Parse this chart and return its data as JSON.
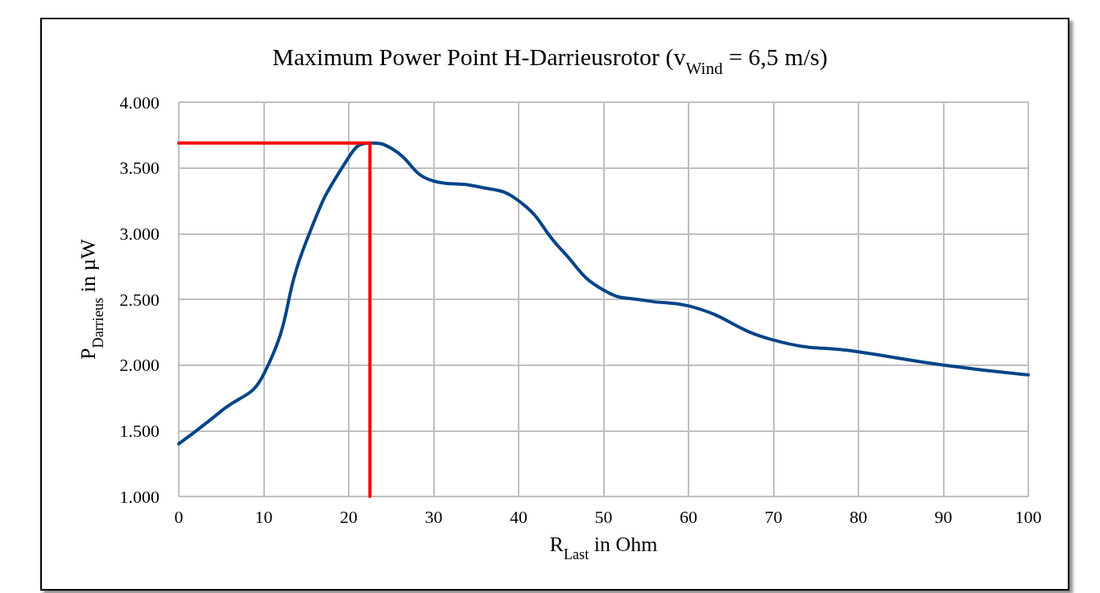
{
  "chart_data": {
    "type": "line",
    "title": "Maximum Power Point H-Darrieusrotor (v$_{Wind}$ = 6,5 m/s)",
    "xlabel": "R$_{Last}$ in Ohm",
    "ylabel": "P$_{Darrieus}$ in µW",
    "xlim": [
      0,
      100
    ],
    "xticks": [
      0,
      10,
      20,
      30,
      40,
      50,
      60,
      70,
      80,
      90,
      100
    ],
    "ylim": [
      1000,
      4000
    ],
    "yticks": [
      {
        "value": 1000,
        "label": "1.000"
      },
      {
        "value": 1500,
        "label": "1.500"
      },
      {
        "value": 2000,
        "label": "2.000"
      },
      {
        "value": 2500,
        "label": "2.500"
      },
      {
        "value": 3000,
        "label": "3.000"
      },
      {
        "value": 3500,
        "label": "3.500"
      },
      {
        "value": 4000,
        "label": "4.000"
      }
    ],
    "grid": true,
    "marker": "none",
    "line_style": "solid",
    "series": [
      {
        "color": "#004489",
        "x": [
          0,
          5,
          10,
          15,
          20,
          22.5,
          25,
          30,
          35,
          40,
          45,
          50,
          55,
          60,
          70,
          80,
          90,
          100
        ],
        "values": [
          1400,
          1650,
          1930,
          2940,
          3580,
          3690,
          3650,
          3400,
          3360,
          3250,
          2880,
          2570,
          2490,
          2450,
          2190,
          2100,
          2000,
          1925
        ]
      },
      {
        "color": "#ff0000",
        "x": [
          0,
          22.5,
          22.5
        ],
        "values": [
          3690,
          3690,
          1000
        ]
      }
    ]
  }
}
